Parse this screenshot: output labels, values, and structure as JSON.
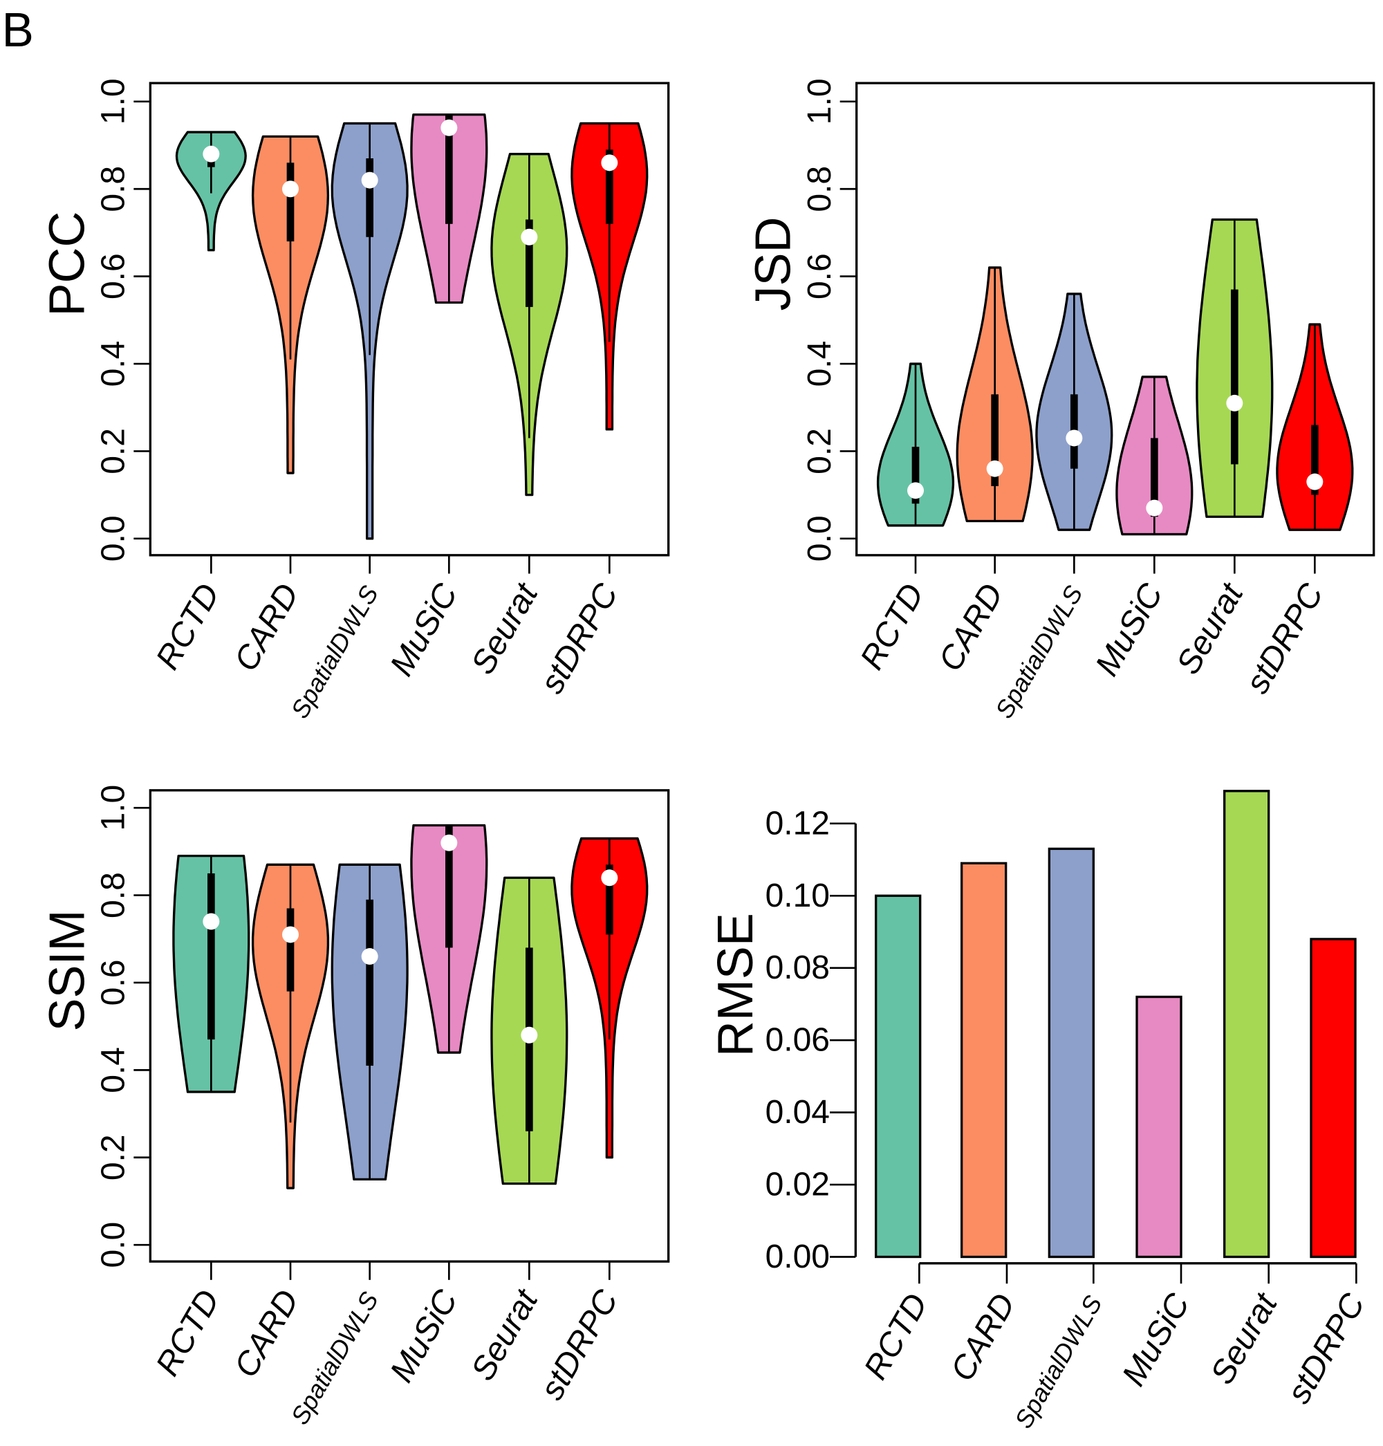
{
  "figure": {
    "panel_label": "B"
  },
  "chart_data": [
    {
      "type": "violin",
      "title": "",
      "ylabel": "PCC",
      "xlabel": "",
      "ylim": [
        0.0,
        1.0
      ],
      "yticks": [
        "0.0",
        "0.2",
        "0.4",
        "0.6",
        "0.8",
        "1.0"
      ],
      "categories": [
        "RCTD",
        "CARD",
        "SpatialDWLS",
        "MuSiC",
        "Seurat",
        "stDRPC"
      ],
      "colors": [
        "#66c2a5",
        "#fc8d62",
        "#8da0cb",
        "#e78ac3",
        "#a6d854",
        "#ff0000"
      ],
      "series": [
        {
          "name": "RCTD",
          "min": 0.66,
          "max": 0.93,
          "median": 0.88,
          "q1": 0.85,
          "q3": 0.89,
          "whisker_low": 0.79,
          "whisker_high": 0.93
        },
        {
          "name": "CARD",
          "min": 0.15,
          "max": 0.92,
          "median": 0.8,
          "q1": 0.68,
          "q3": 0.86,
          "whisker_low": 0.41,
          "whisker_high": 0.92
        },
        {
          "name": "SpatialDWLS",
          "min": 0.0,
          "max": 0.95,
          "median": 0.82,
          "q1": 0.69,
          "q3": 0.87,
          "whisker_low": 0.42,
          "whisker_high": 0.95
        },
        {
          "name": "MuSiC",
          "min": 0.54,
          "max": 0.97,
          "median": 0.94,
          "q1": 0.72,
          "q3": 0.97,
          "whisker_low": 0.54,
          "whisker_high": 0.97
        },
        {
          "name": "Seurat",
          "min": 0.1,
          "max": 0.88,
          "median": 0.69,
          "q1": 0.53,
          "q3": 0.73,
          "whisker_low": 0.23,
          "whisker_high": 0.88
        },
        {
          "name": "stDRPC",
          "min": 0.25,
          "max": 0.95,
          "median": 0.86,
          "q1": 0.72,
          "q3": 0.89,
          "whisker_low": 0.45,
          "whisker_high": 0.95
        }
      ]
    },
    {
      "type": "violin",
      "title": "",
      "ylabel": "JSD",
      "xlabel": "",
      "ylim": [
        0.0,
        1.0
      ],
      "yticks": [
        "0.0",
        "0.2",
        "0.4",
        "0.6",
        "0.8",
        "1.0"
      ],
      "categories": [
        "RCTD",
        "CARD",
        "SpatialDWLS",
        "MuSiC",
        "Seurat",
        "stDRPC"
      ],
      "colors": [
        "#66c2a5",
        "#fc8d62",
        "#8da0cb",
        "#e78ac3",
        "#a6d854",
        "#ff0000"
      ],
      "series": [
        {
          "name": "RCTD",
          "min": 0.03,
          "max": 0.4,
          "median": 0.11,
          "q1": 0.08,
          "q3": 0.21,
          "whisker_low": 0.03,
          "whisker_high": 0.4
        },
        {
          "name": "CARD",
          "min": 0.04,
          "max": 0.62,
          "median": 0.16,
          "q1": 0.12,
          "q3": 0.33,
          "whisker_low": 0.04,
          "whisker_high": 0.62
        },
        {
          "name": "SpatialDWLS",
          "min": 0.02,
          "max": 0.56,
          "median": 0.23,
          "q1": 0.16,
          "q3": 0.33,
          "whisker_low": 0.02,
          "whisker_high": 0.56
        },
        {
          "name": "MuSiC",
          "min": 0.01,
          "max": 0.37,
          "median": 0.07,
          "q1": 0.05,
          "q3": 0.23,
          "whisker_low": 0.01,
          "whisker_high": 0.37
        },
        {
          "name": "Seurat",
          "min": 0.05,
          "max": 0.73,
          "median": 0.31,
          "q1": 0.17,
          "q3": 0.57,
          "whisker_low": 0.05,
          "whisker_high": 0.73
        },
        {
          "name": "stDRPC",
          "min": 0.02,
          "max": 0.49,
          "median": 0.13,
          "q1": 0.1,
          "q3": 0.26,
          "whisker_low": 0.02,
          "whisker_high": 0.49
        }
      ]
    },
    {
      "type": "violin",
      "title": "",
      "ylabel": "SSIM",
      "xlabel": "",
      "ylim": [
        0.0,
        1.0
      ],
      "yticks": [
        "0.0",
        "0.2",
        "0.4",
        "0.6",
        "0.8",
        "1.0"
      ],
      "categories": [
        "RCTD",
        "CARD",
        "SpatialDWLS",
        "MuSiC",
        "Seurat",
        "stDRPC"
      ],
      "colors": [
        "#66c2a5",
        "#fc8d62",
        "#8da0cb",
        "#e78ac3",
        "#a6d854",
        "#ff0000"
      ],
      "series": [
        {
          "name": "RCTD",
          "min": 0.35,
          "max": 0.89,
          "median": 0.74,
          "q1": 0.47,
          "q3": 0.85,
          "whisker_low": 0.35,
          "whisker_high": 0.89
        },
        {
          "name": "CARD",
          "min": 0.13,
          "max": 0.87,
          "median": 0.71,
          "q1": 0.58,
          "q3": 0.77,
          "whisker_low": 0.28,
          "whisker_high": 0.87
        },
        {
          "name": "SpatialDWLS",
          "min": 0.15,
          "max": 0.87,
          "median": 0.66,
          "q1": 0.41,
          "q3": 0.79,
          "whisker_low": 0.15,
          "whisker_high": 0.87
        },
        {
          "name": "MuSiC",
          "min": 0.44,
          "max": 0.96,
          "median": 0.92,
          "q1": 0.68,
          "q3": 0.96,
          "whisker_low": 0.44,
          "whisker_high": 0.96
        },
        {
          "name": "Seurat",
          "min": 0.14,
          "max": 0.84,
          "median": 0.48,
          "q1": 0.26,
          "q3": 0.68,
          "whisker_low": 0.14,
          "whisker_high": 0.84
        },
        {
          "name": "stDRPC",
          "min": 0.2,
          "max": 0.93,
          "median": 0.84,
          "q1": 0.71,
          "q3": 0.87,
          "whisker_low": 0.47,
          "whisker_high": 0.93
        }
      ]
    },
    {
      "type": "bar",
      "title": "",
      "ylabel": "RMSE",
      "xlabel": "",
      "ylim": [
        0.0,
        0.12
      ],
      "yticks": [
        "0.00",
        "0.02",
        "0.04",
        "0.06",
        "0.08",
        "0.10",
        "0.12"
      ],
      "categories": [
        "RCTD",
        "CARD",
        "SpatialDWLS",
        "MuSiC",
        "Seurat",
        "stDRPC"
      ],
      "colors": [
        "#66c2a5",
        "#fc8d62",
        "#8da0cb",
        "#e78ac3",
        "#a6d854",
        "#ff0000"
      ],
      "values": [
        0.1,
        0.109,
        0.113,
        0.072,
        0.129,
        0.088
      ]
    }
  ]
}
